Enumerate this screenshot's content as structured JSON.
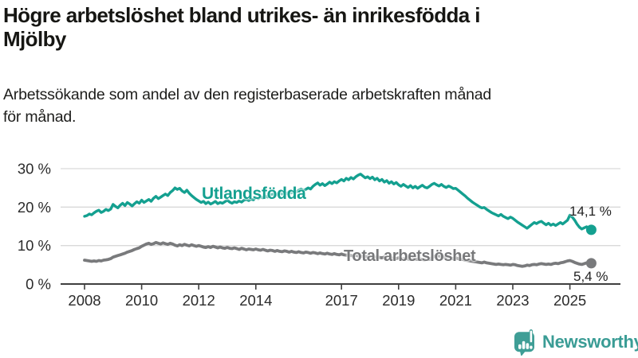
{
  "header": {
    "title_line1": "Högre arbetslöshet bland utrikes- än inrikesfödda i",
    "title_line2": "Mjölby",
    "subtitle_line1": "Arbetssökande som andel av den registerbaserade arbetskraften månad",
    "subtitle_line2": "för månad."
  },
  "footer": {
    "brand": "Newsworthy"
  },
  "colors": {
    "accent_teal": "#14a090",
    "line_gray": "#797a7c",
    "logo_teal": "#3f9e96",
    "text_dark": "#161613",
    "axis_text": "#2b2b2b",
    "grid": "#d9d9d9",
    "axis": "#3f3f3f"
  },
  "chart_data": {
    "type": "line",
    "unit": "%",
    "grid": true,
    "y_axis": {
      "range": [
        0,
        30
      ],
      "tick_values": [
        0,
        10,
        20,
        30
      ],
      "tick_labels": [
        "0 %",
        "10 %",
        "20 %",
        "30 %"
      ]
    },
    "x_axis": {
      "start_year": 2008,
      "points_per_year": 12,
      "tick_years": [
        2008,
        2010,
        2012,
        2014,
        2017,
        2019,
        2021,
        2023,
        2025
      ],
      "tick_labels": [
        "2008",
        "2010",
        "2012",
        "2014",
        "2017",
        "2019",
        "2021",
        "2023",
        "2025"
      ]
    },
    "series": [
      {
        "name": "Utlandsfödda",
        "color": "#14a090",
        "end_label": "14,1 %",
        "end_value": 14.1,
        "values": [
          17.6,
          17.8,
          18.2,
          18.0,
          18.5,
          18.9,
          19.2,
          18.6,
          18.9,
          19.4,
          19.1,
          19.5,
          20.7,
          20.2,
          19.8,
          20.5,
          21.0,
          20.4,
          21.2,
          20.8,
          20.3,
          20.9,
          21.4,
          21.0,
          21.8,
          21.2,
          21.6,
          22.0,
          21.5,
          22.3,
          22.8,
          22.2,
          22.6,
          23.0,
          23.4,
          23.0,
          23.8,
          24.3,
          25.0,
          24.6,
          24.9,
          24.2,
          23.8,
          24.4,
          23.6,
          23.0,
          22.5,
          22.0,
          21.6,
          21.2,
          21.5,
          20.9,
          21.3,
          20.8,
          21.1,
          21.5,
          20.9,
          21.2,
          21.0,
          21.4,
          21.8,
          21.3,
          21.0,
          21.4,
          21.2,
          21.6,
          21.3,
          21.8,
          22.0,
          21.7,
          22.1,
          21.9,
          22.6,
          22.2,
          22.7,
          22.4,
          22.9,
          22.6,
          23.1,
          23.4,
          23.0,
          23.3,
          23.7,
          23.4,
          23.8,
          23.5,
          24.0,
          23.7,
          24.2,
          23.9,
          24.4,
          24.7,
          24.3,
          24.6,
          25.0,
          24.7,
          25.4,
          25.9,
          26.3,
          25.7,
          26.1,
          25.6,
          26.0,
          26.5,
          26.1,
          26.6,
          26.3,
          26.8,
          27.2,
          26.8,
          27.5,
          27.1,
          27.7,
          27.3,
          27.9,
          28.3,
          28.6,
          28.1,
          27.6,
          27.9,
          27.4,
          27.8,
          27.1,
          27.5,
          26.8,
          27.2,
          26.5,
          26.9,
          26.2,
          26.6,
          26.0,
          26.4,
          25.8,
          25.4,
          25.9,
          25.5,
          25.1,
          25.6,
          25.0,
          25.4,
          24.9,
          25.3,
          25.7,
          25.2,
          25.0,
          25.4,
          25.9,
          26.2,
          25.8,
          25.5,
          25.9,
          25.4,
          25.1,
          25.5,
          25.2,
          24.8,
          24.9,
          24.4,
          23.9,
          23.4,
          22.9,
          22.3,
          21.8,
          21.3,
          20.9,
          20.5,
          20.1,
          19.8,
          19.9,
          19.4,
          19.0,
          18.6,
          18.3,
          18.0,
          17.7,
          18.1,
          17.6,
          17.3,
          17.0,
          17.4,
          17.1,
          16.6,
          16.1,
          15.7,
          15.3,
          14.9,
          14.5,
          15.0,
          15.5,
          16.0,
          15.7,
          16.1,
          16.3,
          15.8,
          15.4,
          15.8,
          15.3,
          15.6,
          15.2,
          15.6,
          16.0,
          15.6,
          16.1,
          16.6,
          17.9,
          17.4,
          16.6,
          15.6,
          14.8,
          14.3,
          14.6,
          14.9,
          14.4,
          14.1
        ]
      },
      {
        "name": "Total arbetslöshet",
        "color": "#797a7c",
        "end_label": "5,4 %",
        "end_value": 5.4,
        "values": [
          6.2,
          6.1,
          6.0,
          5.9,
          6.0,
          5.9,
          6.1,
          6.0,
          6.2,
          6.3,
          6.4,
          6.6,
          7.0,
          7.2,
          7.4,
          7.6,
          7.8,
          8.0,
          8.3,
          8.5,
          8.7,
          9.0,
          9.2,
          9.4,
          9.8,
          10.1,
          10.4,
          10.6,
          10.3,
          10.5,
          10.8,
          10.6,
          10.4,
          10.7,
          10.5,
          10.3,
          10.6,
          10.4,
          10.1,
          9.9,
          10.2,
          10.0,
          10.3,
          10.1,
          9.9,
          10.2,
          10.0,
          9.8,
          10.0,
          9.8,
          9.6,
          9.5,
          9.7,
          9.5,
          9.8,
          9.6,
          9.4,
          9.6,
          9.4,
          9.3,
          9.5,
          9.3,
          9.2,
          9.4,
          9.2,
          9.0,
          9.3,
          9.1,
          8.9,
          9.1,
          9.0,
          8.9,
          9.1,
          8.9,
          8.8,
          9.0,
          8.8,
          8.6,
          8.8,
          8.7,
          8.5,
          8.7,
          8.5,
          8.4,
          8.6,
          8.5,
          8.3,
          8.5,
          8.3,
          8.2,
          8.4,
          8.2,
          8.1,
          8.3,
          8.2,
          8.0,
          8.2,
          8.1,
          7.9,
          8.1,
          7.9,
          7.8,
          8.0,
          7.8,
          7.7,
          7.9,
          7.7,
          7.6,
          7.8,
          7.6,
          7.5,
          7.6,
          7.4,
          7.3,
          7.5,
          7.3,
          7.2,
          7.3,
          7.2,
          7.0,
          7.2,
          7.0,
          6.9,
          7.1,
          6.9,
          6.8,
          7.0,
          6.8,
          6.7,
          6.8,
          6.7,
          6.6,
          6.8,
          6.6,
          6.5,
          6.7,
          6.5,
          6.4,
          6.6,
          6.5,
          6.4,
          6.5,
          6.4,
          6.3,
          6.5,
          6.4,
          6.8,
          7.2,
          7.4,
          7.3,
          7.2,
          7.0,
          6.9,
          6.8,
          6.7,
          6.6,
          6.8,
          6.6,
          6.5,
          6.4,
          6.2,
          6.1,
          6.0,
          5.9,
          5.8,
          5.7,
          5.6,
          5.5,
          5.7,
          5.5,
          5.4,
          5.3,
          5.2,
          5.1,
          5.2,
          5.1,
          5.0,
          5.1,
          5.0,
          4.9,
          5.1,
          5.0,
          4.8,
          4.7,
          4.6,
          4.7,
          4.9,
          4.8,
          5.0,
          5.1,
          5.0,
          5.2,
          5.3,
          5.2,
          5.1,
          5.2,
          5.1,
          5.3,
          5.4,
          5.3,
          5.5,
          5.6,
          5.8,
          6.0,
          6.1,
          5.9,
          5.6,
          5.4,
          5.2,
          5.1,
          5.3,
          5.5,
          5.3,
          5.4
        ]
      }
    ]
  }
}
